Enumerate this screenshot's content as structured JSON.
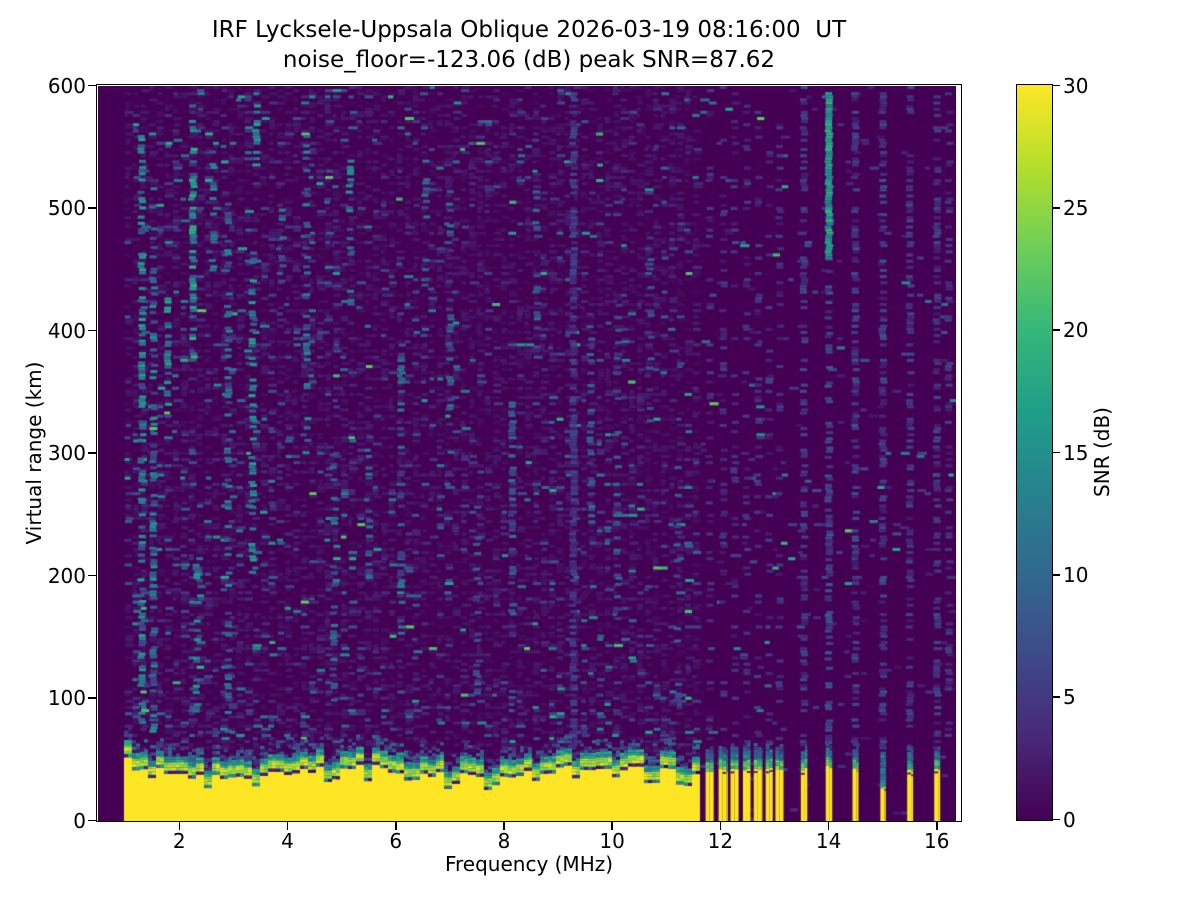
{
  "chart_data": {
    "type": "heatmap",
    "title_line1": "IRF Lycksele-Uppsala Oblique 2026-03-19 08:16:00  UT",
    "title_line2": "noise_floor=-123.06 (dB) peak SNR=87.62",
    "xlabel": "Frequency (MHz)",
    "ylabel": "Virtual range (km)",
    "colorbar_label": "SNR (dB)",
    "noise_floor_dB": -123.06,
    "peak_snr_dB": 87.62,
    "xlim": [
      0.49,
      16.44
    ],
    "ylim": [
      0,
      600
    ],
    "snr_lim": [
      0,
      30
    ],
    "xticks": [
      2,
      4,
      6,
      8,
      10,
      12,
      14,
      16
    ],
    "yticks": [
      0,
      100,
      200,
      300,
      400,
      500,
      600
    ],
    "colorbar_ticks": [
      0,
      5,
      10,
      15,
      20,
      25,
      30
    ],
    "legend_position": "right-colorbar",
    "grid": false,
    "colormap": "viridis",
    "colormap_stops": [
      "#440154",
      "#482878",
      "#3e4989",
      "#31688e",
      "#26828e",
      "#1f9e89",
      "#35b779",
      "#6ece58",
      "#b5de2b",
      "#fde725"
    ],
    "mesh": {
      "seed": 42,
      "f_data_start": 0.97,
      "f_data_end": 16.35,
      "echo_band": {
        "f_start": 1.0,
        "f_end": 11.58,
        "saturated_top_km": 40,
        "transition_top_km": 64,
        "notch_km_above_top": 2,
        "dips": [
          [
            1.5,
            9
          ],
          [
            2.52,
            12
          ],
          [
            3.4,
            11
          ],
          [
            4.8,
            9
          ],
          [
            5.45,
            10
          ],
          [
            6.3,
            7
          ],
          [
            7.05,
            9
          ],
          [
            7.8,
            8
          ],
          [
            8.6,
            9
          ],
          [
            9.3,
            10
          ],
          [
            10.05,
            8
          ],
          [
            10.75,
            9
          ],
          [
            11.3,
            8
          ]
        ]
      },
      "stripe_group": [
        [
          11.72,
          11.87
        ],
        [
          11.96,
          12.13
        ],
        [
          12.18,
          12.33
        ],
        [
          12.41,
          12.55
        ],
        [
          12.61,
          12.77
        ],
        [
          12.83,
          12.96
        ],
        [
          13.01,
          13.16
        ]
      ],
      "isolated_stripes": [
        {
          "f": 13.54,
          "halfwidth": 0.06,
          "yellow_top_km": 42
        },
        {
          "f": 14.0,
          "halfwidth": 0.06,
          "yellow_top_km": 44
        },
        {
          "f": 14.49,
          "halfwidth": 0.055,
          "yellow_top_km": 42
        },
        {
          "f": 15.0,
          "halfwidth": 0.05,
          "yellow_top_km": 28
        },
        {
          "f": 15.5,
          "halfwidth": 0.055,
          "yellow_top_km": 41
        },
        {
          "f": 16.0,
          "halfwidth": 0.055,
          "yellow_top_km": 43
        }
      ],
      "noise_density": {
        "low_band": 0.16,
        "mid_band": 0.12,
        "high_band": 0.03,
        "faint_texture": 0.38
      },
      "streaks": [
        [
          1.3,
          80,
          560,
          0.5,
          6,
          18
        ],
        [
          1.52,
          60,
          520,
          0.45,
          5,
          16
        ],
        [
          1.78,
          340,
          430,
          0.5,
          8,
          18
        ],
        [
          2.25,
          380,
          585,
          0.5,
          8,
          20
        ],
        [
          2.32,
          80,
          210,
          0.4,
          6,
          16
        ],
        [
          2.62,
          450,
          560,
          0.4,
          6,
          15
        ],
        [
          2.9,
          60,
          520,
          0.35,
          5,
          14
        ],
        [
          3.35,
          200,
          470,
          0.45,
          8,
          18
        ],
        [
          3.42,
          530,
          585,
          0.5,
          10,
          18
        ],
        [
          3.9,
          440,
          500,
          0.4,
          6,
          14
        ],
        [
          4.35,
          300,
          560,
          0.35,
          6,
          15
        ],
        [
          4.85,
          100,
          300,
          0.3,
          5,
          13
        ],
        [
          5.15,
          420,
          545,
          0.4,
          6,
          16
        ],
        [
          5.5,
          200,
          340,
          0.3,
          5,
          12
        ],
        [
          6.1,
          150,
          400,
          0.25,
          4,
          12
        ],
        [
          6.55,
          430,
          545,
          0.25,
          4,
          12
        ],
        [
          7.0,
          300,
          520,
          0.25,
          4,
          12
        ],
        [
          7.5,
          100,
          260,
          0.22,
          4,
          11
        ],
        [
          8.15,
          100,
          350,
          0.25,
          4,
          12
        ],
        [
          8.6,
          380,
          520,
          0.22,
          4,
          11
        ],
        [
          9.28,
          0,
          600,
          0.7,
          2.5,
          7
        ],
        [
          9.6,
          240,
          420,
          0.25,
          4,
          11
        ],
        [
          10.1,
          150,
          450,
          0.25,
          4,
          10
        ],
        [
          10.7,
          320,
          500,
          0.22,
          4,
          10
        ],
        [
          11.2,
          100,
          300,
          0.22,
          4,
          10
        ],
        [
          11.8,
          60,
          600,
          0.22,
          1.5,
          6
        ],
        [
          12.05,
          60,
          600,
          0.22,
          1.5,
          6
        ],
        [
          12.26,
          60,
          600,
          0.22,
          1.5,
          6
        ],
        [
          12.48,
          60,
          600,
          0.22,
          1.5,
          6
        ],
        [
          12.69,
          60,
          600,
          0.22,
          1.5,
          6
        ],
        [
          12.9,
          60,
          600,
          0.22,
          1.5,
          6
        ],
        [
          13.09,
          60,
          600,
          0.22,
          1.5,
          6
        ],
        [
          13.54,
          60,
          600,
          0.45,
          2,
          7
        ],
        [
          14.0,
          60,
          460,
          0.55,
          3,
          9
        ],
        [
          14.0,
          460,
          595,
          0.95,
          12,
          20
        ],
        [
          14.49,
          60,
          600,
          0.5,
          2,
          8
        ],
        [
          15.0,
          60,
          600,
          0.5,
          2,
          8
        ],
        [
          15.5,
          60,
          600,
          0.45,
          2,
          7
        ],
        [
          16.0,
          60,
          600,
          0.45,
          2,
          7
        ],
        [
          16.22,
          60,
          600,
          0.35,
          2,
          6
        ]
      ]
    }
  }
}
